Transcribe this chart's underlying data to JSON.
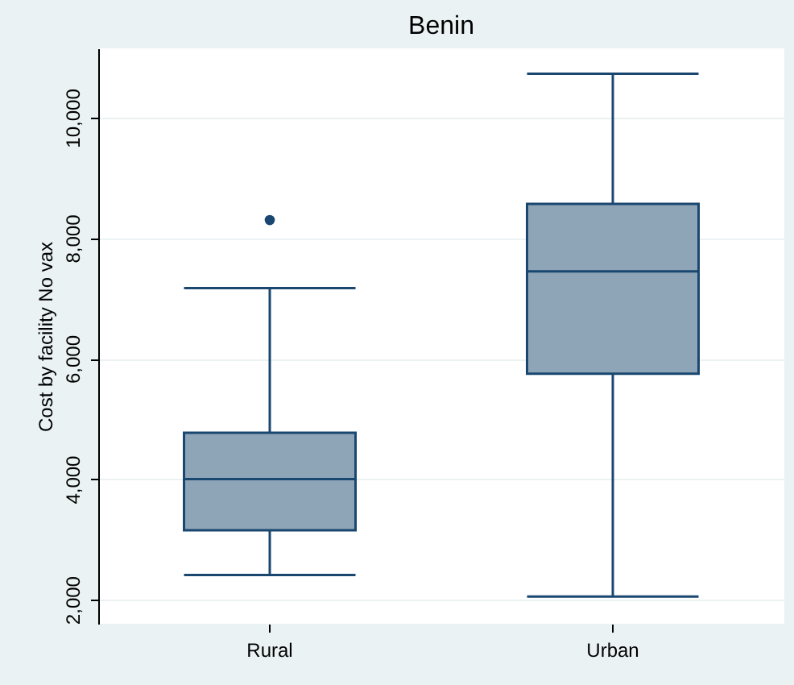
{
  "chart_data": {
    "type": "box",
    "title": "Benin",
    "ylabel": "Cost by facility No vax",
    "categories": [
      "Rural",
      "Urban"
    ],
    "boxes": [
      {
        "low": 2410,
        "q1": 3150,
        "median": 4000,
        "q3": 4770,
        "high": 7170,
        "outliers": [
          8300
        ]
      },
      {
        "low": 2050,
        "q1": 5750,
        "median": 7450,
        "q3": 8570,
        "high": 10730
      }
    ],
    "color": "#8ea5b8",
    "ylim": [
      1600,
      11150
    ],
    "yticks": [
      {
        "value": 2000,
        "label": "2,000"
      },
      {
        "value": 4000,
        "label": "4,000"
      },
      {
        "value": 6000,
        "label": "6,000"
      },
      {
        "value": 8000,
        "label": "8,000"
      },
      {
        "value": 10000,
        "label": "10,000"
      }
    ],
    "grid": "y"
  }
}
